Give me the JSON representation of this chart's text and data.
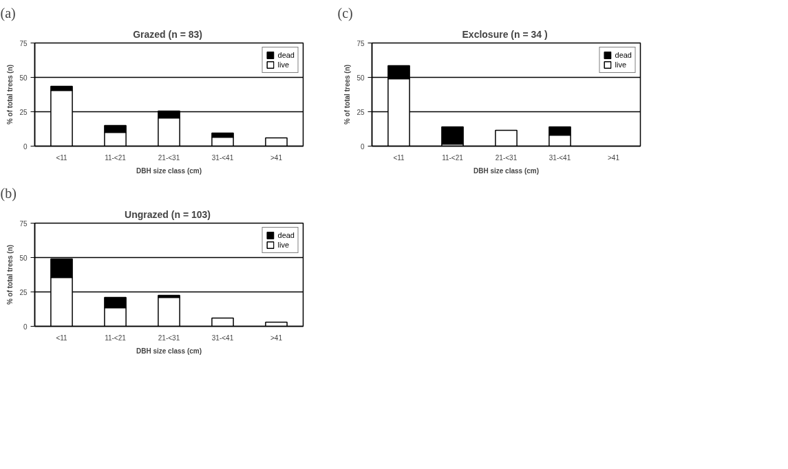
{
  "chart_data": [
    {
      "type": "bar",
      "stacked": true,
      "annotations": [
        "(a)"
      ],
      "title": "Grazed  (n = 83)",
      "xlabel": "DBH size class (cm)",
      "ylabel": "% of total trees (n)",
      "categories": [
        "<11",
        "11-<21",
        "21-<31",
        "31-<41",
        ">41"
      ],
      "ylim": [
        0,
        75
      ],
      "yticks": [
        0,
        25,
        50,
        75
      ],
      "grid": "y",
      "legend": "right",
      "series": [
        {
          "name": "live",
          "color": "#ffffff",
          "values": [
            40.5,
            10,
            20.5,
            6.5,
            6
          ]
        },
        {
          "name": "dead",
          "color": "#000000",
          "values": [
            3,
            5,
            5,
            3,
            0
          ]
        }
      ]
    },
    {
      "type": "bar",
      "stacked": true,
      "annotations": [
        "(c)"
      ],
      "title": "Exclosure  (n = 34 )",
      "xlabel": "DBH size class (cm)",
      "ylabel": "% of total trees (n)",
      "categories": [
        "<11",
        "11-<21",
        "21-<31",
        "31-<41",
        ">41"
      ],
      "ylim": [
        0,
        75
      ],
      "yticks": [
        0,
        25,
        50,
        75
      ],
      "grid": "y",
      "legend": "right",
      "series": [
        {
          "name": "live",
          "color": "#ffffff",
          "values": [
            49,
            1.5,
            11.5,
            8,
            0
          ]
        },
        {
          "name": "dead",
          "color": "#000000",
          "values": [
            9.5,
            12.5,
            0,
            6,
            0
          ]
        }
      ]
    },
    {
      "type": "bar",
      "stacked": true,
      "annotations": [
        "(b)"
      ],
      "title": "Ungrazed  (n = 103)",
      "xlabel": "DBH size class (cm)",
      "ylabel": "% of total trees (n)",
      "categories": [
        "<11",
        "11-<21",
        "21-<31",
        "31-<41",
        ">41"
      ],
      "ylim": [
        0,
        75
      ],
      "yticks": [
        0,
        25,
        50,
        75
      ],
      "grid": "y",
      "legend": "right",
      "series": [
        {
          "name": "live",
          "color": "#ffffff",
          "values": [
            35.5,
            13.5,
            21,
            6,
            3
          ]
        },
        {
          "name": "dead",
          "color": "#000000",
          "values": [
            13.5,
            7.5,
            1.5,
            0,
            0
          ]
        }
      ]
    }
  ]
}
